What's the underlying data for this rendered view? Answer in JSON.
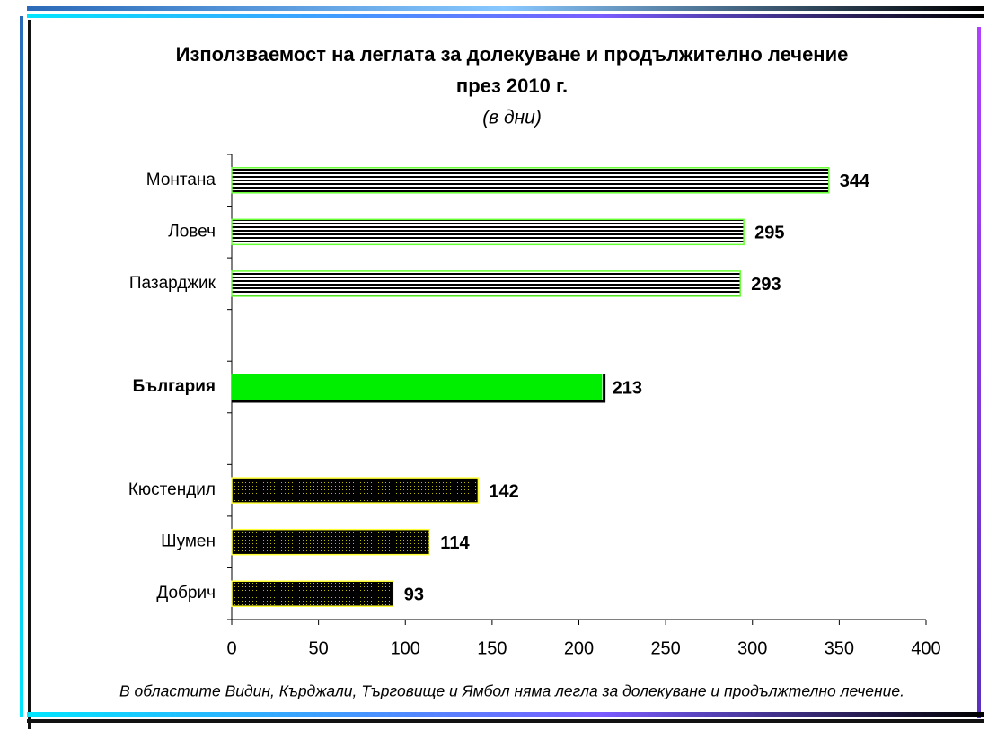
{
  "chart_data": {
    "type": "barh",
    "title": [
      "Използваемост на леглата за долекуване и продължително лечение",
      "през 2010 г."
    ],
    "subtitle": "(в дни)",
    "categories": [
      "Монтана",
      "Ловеч",
      "Пазарджик",
      null,
      "България",
      null,
      "Кюстендил",
      "Шумен",
      "Добрич"
    ],
    "values": [
      344,
      295,
      293,
      null,
      213,
      null,
      142,
      114,
      93
    ],
    "colors": [
      "#66ff33",
      "#66ff33",
      "#66ff33",
      null,
      "#00ee00",
      null,
      "#ffff33",
      "#ffff33",
      "#ffff33"
    ],
    "patterns": [
      "hlines",
      "hlines",
      "hlines",
      null,
      "solid",
      null,
      "dots",
      "dots",
      "dots"
    ],
    "emphasis": [
      false,
      false,
      false,
      false,
      true,
      false,
      false,
      false,
      false
    ],
    "xlim": [
      0,
      400
    ],
    "xticks": [
      0,
      50,
      100,
      150,
      200,
      250,
      300,
      350,
      400
    ],
    "note": "В областите Видин, Кърджали, Търговище и Ямбол няма легла за долекуване и продължтелно лечение."
  }
}
